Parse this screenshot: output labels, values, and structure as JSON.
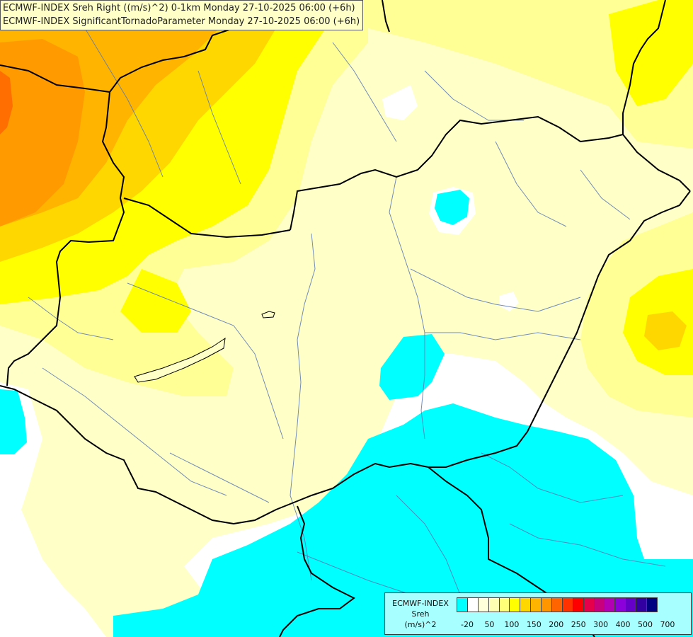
{
  "header": {
    "line1": "ECMWF-INDEX Sreh Right ((m/s)^2) 0-1km Monday 27-10-2025 06:00 (+6h)",
    "line2": "ECMWF-INDEX SignificantTornadoParameter Monday 27-10-2025 06:00 (+6h)"
  },
  "legend": {
    "title_lines": [
      "ECMWF-INDEX",
      "Sreh",
      "(m/s)^2"
    ],
    "ticks": [
      "-20",
      "50",
      "100",
      "150",
      "200",
      "250",
      "300",
      "400",
      "500",
      "700"
    ],
    "colors": [
      "#00ffff",
      "#ffffff",
      "#ffffdc",
      "#ffffb4",
      "#ffff78",
      "#ffff00",
      "#ffd700",
      "#ffb400",
      "#ff9600",
      "#ff6400",
      "#ff3200",
      "#ff0000",
      "#e6004b",
      "#c8007d",
      "#b400b4",
      "#8c00dc",
      "#6400c8",
      "#3200a0",
      "#000080"
    ]
  },
  "map": {
    "colors": {
      "white": "#ffffff",
      "cyan": "#00ffff",
      "pale": "#ffffc8",
      "light_yellow": "#ffff96",
      "yellow": "#ffff00",
      "gold": "#ffd700",
      "orange": "#ffb400",
      "dark_orange": "#ff9a00",
      "red_orange": "#ff6e00",
      "border": "#000000",
      "river": "#5a78b4"
    }
  }
}
